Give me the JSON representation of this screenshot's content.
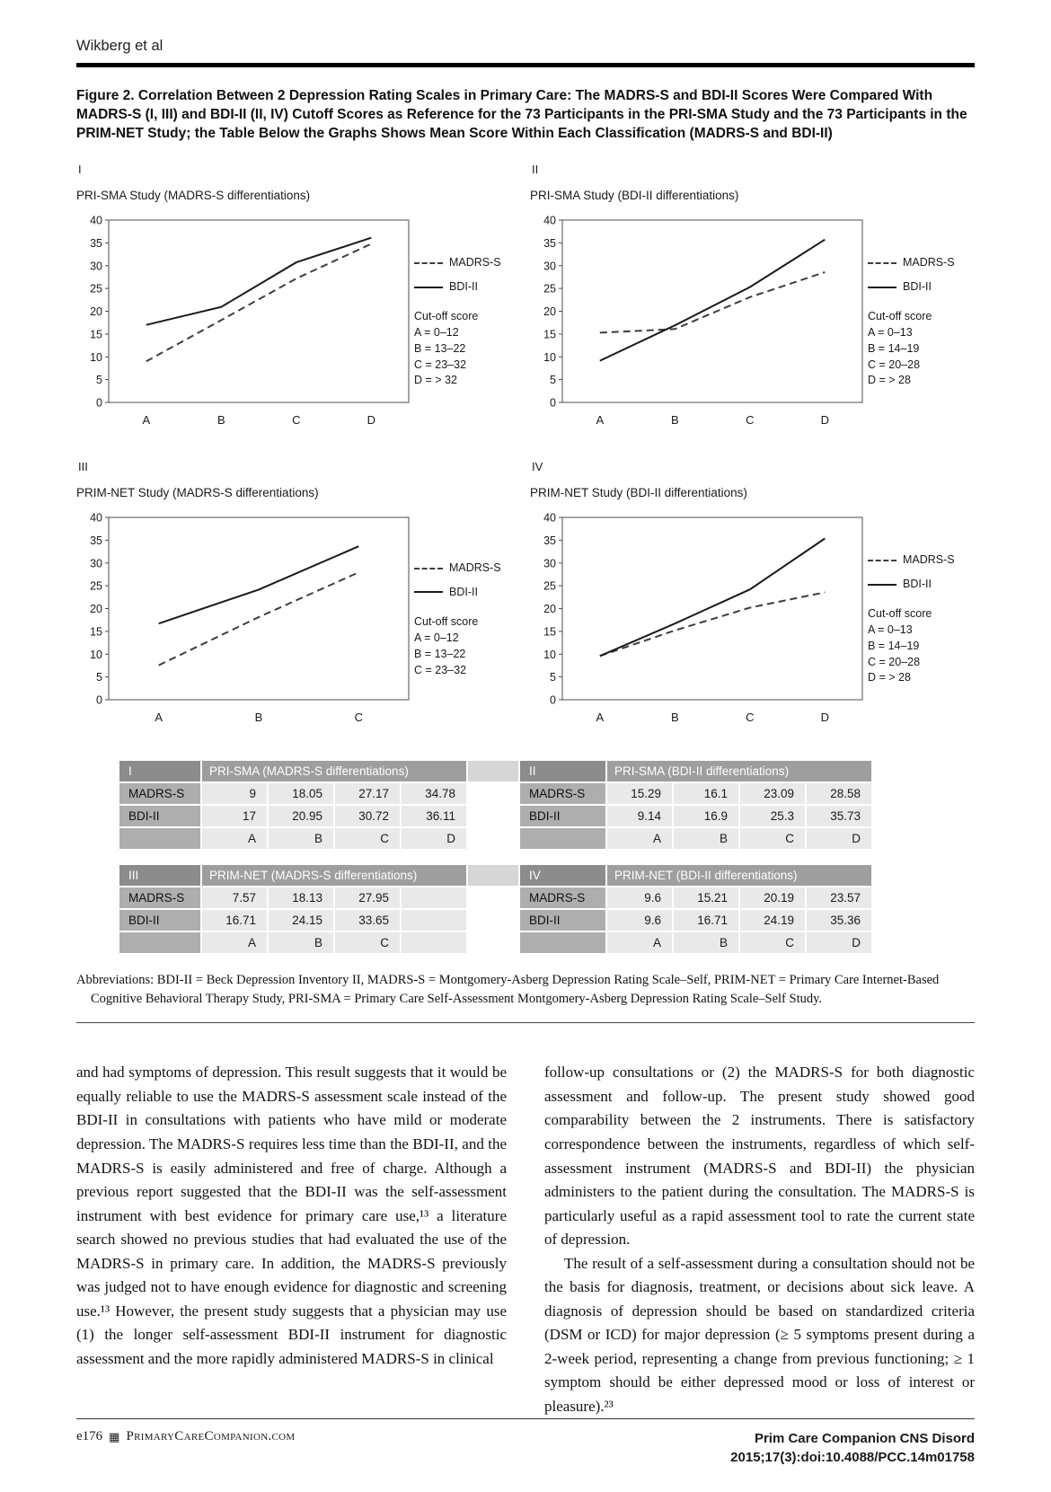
{
  "page": {
    "running_head": "Wikberg et al",
    "figure_caption": "Figure 2. Correlation Between 2 Depression Rating Scales in Primary Care: The MADRS-S and BDI-II Scores Were Compared With MADRS-S (I, III) and BDI-II (II, IV) Cutoff Scores as Reference for the 73 Participants in the PRI-SMA Study and the 73 Participants in the PRIM-NET Study; the Table Below the Graphs Shows Mean Score Within Each Classification (MADRS-S and BDI-II)",
    "abbreviations": "Abbreviations: BDI-II = Beck Depression Inventory II, MADRS-S = Montgomery-Asberg Depression Rating Scale–Self, PRIM-NET = Primary Care Internet-Based Cognitive Behavioral Therapy Study, PRI-SMA = Primary Care Self-Assessment Montgomery-Asberg Depression Rating Scale–Self Study.",
    "footer": {
      "page_number": "e176",
      "journal_logo_glyph": "▦",
      "journal_site": "PrimaryCareCompanion.com",
      "journal_name": "Prim Care Companion CNS Disord",
      "citation": "2015;17(3):doi:10.4088/PCC.14m01758"
    }
  },
  "chart_data": [
    {
      "id": "I",
      "type": "line",
      "title": "PRI-SMA Study (MADRS-S differentiations)",
      "categories": [
        "A",
        "B",
        "C",
        "D"
      ],
      "series": [
        {
          "name": "MADRS-S",
          "style": "dashed",
          "values": [
            9,
            18.05,
            27.17,
            34.78
          ]
        },
        {
          "name": "BDI-II",
          "style": "solid",
          "values": [
            17,
            20.95,
            30.72,
            36.11
          ]
        }
      ],
      "ylim": [
        0,
        40
      ],
      "ytick_step": 5,
      "legend_position": "right",
      "grid": false,
      "cutoff_title": "Cut-off score",
      "cutoffs": [
        "A = 0–12",
        "B = 13–22",
        "C = 23–32",
        "D = > 32"
      ]
    },
    {
      "id": "II",
      "type": "line",
      "title": "PRI-SMA Study (BDI-II differentiations)",
      "categories": [
        "A",
        "B",
        "C",
        "D"
      ],
      "series": [
        {
          "name": "MADRS-S",
          "style": "dashed",
          "values": [
            15.29,
            16.1,
            23.09,
            28.58
          ]
        },
        {
          "name": "BDI-II",
          "style": "solid",
          "values": [
            9.14,
            16.9,
            25.3,
            35.73
          ]
        }
      ],
      "ylim": [
        0,
        40
      ],
      "ytick_step": 5,
      "legend_position": "right",
      "grid": false,
      "cutoff_title": "Cut-off score",
      "cutoffs": [
        "A = 0–13",
        "B = 14–19",
        "C = 20–28",
        "D = > 28"
      ]
    },
    {
      "id": "III",
      "type": "line",
      "title": "PRIM-NET Study (MADRS-S differentiations)",
      "categories": [
        "A",
        "B",
        "C"
      ],
      "series": [
        {
          "name": "MADRS-S",
          "style": "dashed",
          "values": [
            7.57,
            18.13,
            27.95
          ]
        },
        {
          "name": "BDI-II",
          "style": "solid",
          "values": [
            16.71,
            24.15,
            33.65
          ]
        }
      ],
      "ylim": [
        0,
        40
      ],
      "ytick_step": 5,
      "legend_position": "right",
      "grid": false,
      "cutoff_title": "Cut-off score",
      "cutoffs": [
        "A = 0–12",
        "B = 13–22",
        "C = 23–32"
      ]
    },
    {
      "id": "IV",
      "type": "line",
      "title": "PRIM-NET Study (BDI-II differentiations)",
      "categories": [
        "A",
        "B",
        "C",
        "D"
      ],
      "series": [
        {
          "name": "MADRS-S",
          "style": "dashed",
          "values": [
            9.6,
            15.21,
            20.19,
            23.57
          ]
        },
        {
          "name": "BDI-II",
          "style": "solid",
          "values": [
            9.6,
            16.71,
            24.19,
            35.36
          ]
        }
      ],
      "ylim": [
        0,
        40
      ],
      "ytick_step": 5,
      "legend_position": "right",
      "grid": false,
      "cutoff_title": "Cut-off score",
      "cutoffs": [
        "A = 0–13",
        "B = 14–19",
        "C = 20–28",
        "D = > 28"
      ]
    }
  ],
  "table": {
    "blocks": [
      {
        "id": "I",
        "header": "PRI-SMA (MADRS-S differentiations)",
        "rows": [
          {
            "label": "MADRS-S",
            "values": [
              "9",
              "18.05",
              "27.17",
              "34.78"
            ]
          },
          {
            "label": "BDI-II",
            "values": [
              "17",
              "20.95",
              "30.72",
              "36.11"
            ]
          }
        ],
        "letters": [
          "A",
          "B",
          "C",
          "D"
        ]
      },
      {
        "id": "II",
        "header": "PRI-SMA (BDI-II differentiations)",
        "rows": [
          {
            "label": "MADRS-S",
            "values": [
              "15.29",
              "16.1",
              "23.09",
              "28.58"
            ]
          },
          {
            "label": "BDI-II",
            "values": [
              "9.14",
              "16.9",
              "25.3",
              "35.73"
            ]
          }
        ],
        "letters": [
          "A",
          "B",
          "C",
          "D"
        ]
      },
      {
        "id": "III",
        "header": "PRIM-NET (MADRS-S differentiations)",
        "rows": [
          {
            "label": "MADRS-S",
            "values": [
              "7.57",
              "18.13",
              "27.95",
              ""
            ]
          },
          {
            "label": "BDI-II",
            "values": [
              "16.71",
              "24.15",
              "33.65",
              ""
            ]
          }
        ],
        "letters": [
          "A",
          "B",
          "C",
          ""
        ]
      },
      {
        "id": "IV",
        "header": "PRIM-NET (BDI-II differentiations)",
        "rows": [
          {
            "label": "MADRS-S",
            "values": [
              "9.6",
              "15.21",
              "20.19",
              "23.57"
            ]
          },
          {
            "label": "BDI-II",
            "values": [
              "9.6",
              "16.71",
              "24.19",
              "35.36"
            ]
          }
        ],
        "letters": [
          "A",
          "B",
          "C",
          "D"
        ]
      }
    ]
  },
  "body": {
    "left": [
      "and had symptoms of depression. This result suggests that it would be equally reliable to use the MADRS-S assessment scale instead of the BDI-II in consultations with patients who have mild or moderate depression. The MADRS-S requires less time than the BDI-II, and the MADRS-S is easily administered and free of charge. Although a previous report suggested that the BDI-II was the self-assessment instrument with best evidence for primary care use,¹³ a literature search showed no previous studies that had evaluated the use of the MADRS-S in primary care. In addition, the MADRS-S previously was judged not to have enough evidence for diagnostic and screening use.¹³ However, the present study suggests that a physician may use (1) the longer self-assessment BDI-II instrument for diagnostic assessment and the more rapidly administered MADRS-S in clinical"
    ],
    "right": [
      "follow-up consultations or (2) the MADRS-S for both diagnostic assessment and follow-up. The present study showed good comparability between the 2 instruments. There is satisfactory correspondence between the instruments, regardless of which self-assessment instrument (MADRS-S and BDI-II) the physician administers to the patient during the consultation. The MADRS-S is particularly useful as a rapid assessment tool to rate the current state of depression.",
      "The result of a self-assessment during a consultation should not be the basis for diagnosis, treatment, or decisions about sick leave. A diagnosis of depression should be based on standardized criteria (DSM or ICD) for major depression (≥ 5 symptoms present during a 2-week period, representing a change from previous functioning; ≥ 1 symptom should be either depressed mood or loss of interest or pleasure).²³"
    ]
  }
}
